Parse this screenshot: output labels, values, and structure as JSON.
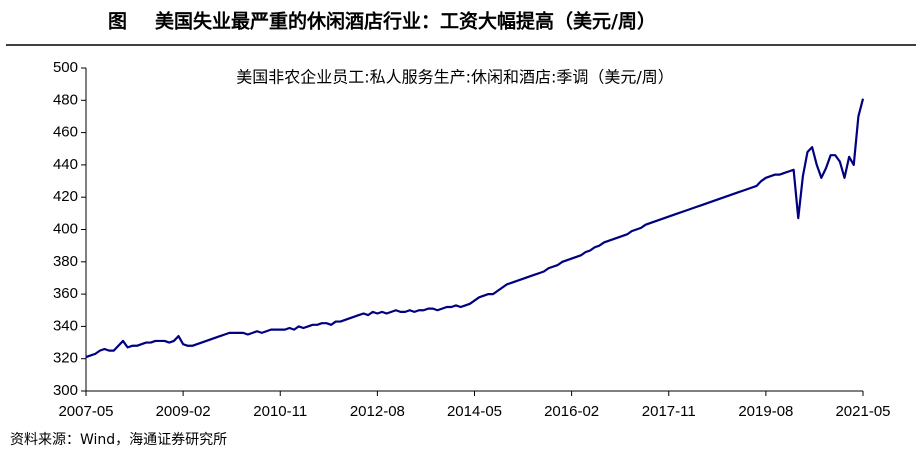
{
  "chart_data": {
    "type": "line",
    "figure_label": "图",
    "title": "美国失业最严重的休闲酒店行业：工资大幅提高（美元/周）",
    "source": "资料来源：Wind，海通证券研究所",
    "categories": [
      "2007-05",
      null,
      null,
      null,
      null,
      null,
      null,
      null,
      null,
      null,
      null,
      null,
      null,
      null,
      null,
      null,
      null,
      null,
      null,
      null,
      null,
      "2009-02",
      null,
      null,
      null,
      null,
      null,
      null,
      null,
      null,
      null,
      null,
      null,
      null,
      null,
      null,
      null,
      null,
      null,
      null,
      null,
      null,
      "2010-11",
      null,
      null,
      null,
      null,
      null,
      null,
      null,
      null,
      null,
      null,
      null,
      null,
      null,
      null,
      null,
      null,
      null,
      null,
      null,
      null,
      "2012-08",
      null,
      null,
      null,
      null,
      null,
      null,
      null,
      null,
      null,
      null,
      null,
      null,
      null,
      null,
      null,
      null,
      null,
      null,
      null,
      null,
      "2014-05",
      null,
      null,
      null,
      null,
      null,
      null,
      null,
      null,
      null,
      null,
      null,
      null,
      null,
      null,
      null,
      null,
      null,
      null,
      null,
      null,
      "2016-02",
      null,
      null,
      null,
      null,
      null,
      null,
      null,
      null,
      null,
      null,
      null,
      null,
      null,
      null,
      null,
      null,
      null,
      null,
      null,
      null,
      "2017-11",
      null,
      null,
      null,
      null,
      null,
      null,
      null,
      null,
      null,
      null,
      null,
      null,
      null,
      null,
      null,
      null,
      null,
      null,
      null,
      null,
      "2019-08",
      null,
      null,
      null,
      null,
      null,
      null,
      null,
      null,
      null,
      null,
      null,
      null,
      null,
      null,
      null,
      null,
      null,
      null,
      null,
      null,
      "2021-05"
    ],
    "series": [
      {
        "name": "美国非农企业员工:私人服务生产:休闲和酒店:季调（美元/周）",
        "color": "#000080",
        "values": [
          321,
          322,
          323,
          325,
          326,
          325,
          325,
          328,
          331,
          327,
          328,
          328,
          329,
          330,
          330,
          331,
          331,
          331,
          330,
          331,
          334,
          329,
          328,
          328,
          329,
          330,
          331,
          332,
          333,
          334,
          335,
          336,
          336,
          336,
          336,
          335,
          336,
          337,
          336,
          337,
          338,
          338,
          338,
          338,
          339,
          338,
          340,
          339,
          340,
          341,
          341,
          342,
          342,
          341,
          343,
          343,
          344,
          345,
          346,
          347,
          348,
          347,
          349,
          348,
          349,
          348,
          349,
          350,
          349,
          349,
          350,
          349,
          350,
          350,
          351,
          351,
          350,
          351,
          352,
          352,
          353,
          352,
          353,
          354,
          356,
          358,
          359,
          360,
          360,
          362,
          364,
          366,
          367,
          368,
          369,
          370,
          371,
          372,
          373,
          374,
          376,
          377,
          378,
          380,
          381,
          382,
          383,
          384,
          386,
          387,
          389,
          390,
          392,
          393,
          394,
          395,
          396,
          397,
          399,
          400,
          401,
          403,
          404,
          405,
          406,
          407,
          408,
          409,
          410,
          411,
          412,
          413,
          414,
          415,
          416,
          417,
          418,
          419,
          420,
          421,
          422,
          423,
          424,
          425,
          426,
          427,
          430,
          432,
          433,
          434,
          434,
          435,
          436,
          437,
          407,
          433,
          448,
          451,
          440,
          432,
          438,
          446,
          446,
          442,
          432,
          445,
          440,
          470,
          481
        ]
      }
    ],
    "ylim": [
      300,
      500
    ],
    "yticks": [
      300,
      320,
      340,
      360,
      380,
      400,
      420,
      440,
      460,
      480,
      500
    ]
  }
}
